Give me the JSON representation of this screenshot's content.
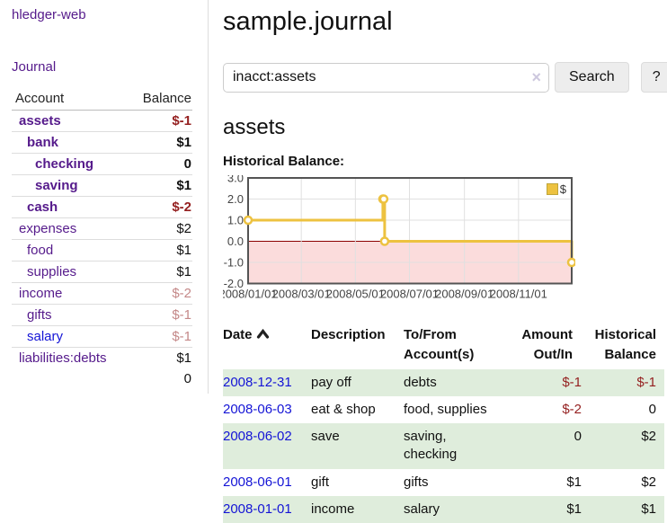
{
  "app": {
    "brand": "hledger-web",
    "nav_journal": "Journal"
  },
  "sidebar": {
    "columns": {
      "account": "Account",
      "balance": "Balance"
    },
    "accounts": [
      {
        "name": "assets",
        "indent": 1,
        "bold": true,
        "balance": "$-1",
        "balance_style": "negative"
      },
      {
        "name": "bank",
        "indent": 2,
        "bold": true,
        "balance": "$1",
        "balance_style": "normal"
      },
      {
        "name": "checking",
        "indent": 3,
        "bold": true,
        "balance": "0",
        "balance_style": "normal"
      },
      {
        "name": "saving",
        "indent": 3,
        "bold": true,
        "balance": "$1",
        "balance_style": "normal"
      },
      {
        "name": "cash",
        "indent": 2,
        "bold": true,
        "balance": "$-2",
        "balance_style": "negative"
      },
      {
        "name": "expenses",
        "indent": 1,
        "bold": false,
        "balance": "$2",
        "balance_style": "normal"
      },
      {
        "name": "food",
        "indent": 2,
        "bold": false,
        "balance": "$1",
        "balance_style": "normal"
      },
      {
        "name": "supplies",
        "indent": 2,
        "bold": false,
        "balance": "$1",
        "balance_style": "normal"
      },
      {
        "name": "income",
        "indent": 1,
        "bold": false,
        "balance": "$-2",
        "balance_style": "negative-light"
      },
      {
        "name": "gifts",
        "indent": 2,
        "bold": false,
        "balance": "$-1",
        "balance_style": "negative-light"
      },
      {
        "name": "salary",
        "indent": 2,
        "bold": false,
        "balance": "$-1",
        "balance_style": "negative-light",
        "link_style": "blue"
      },
      {
        "name": "liabilities:debts",
        "indent": 1,
        "bold": false,
        "balance": "$1",
        "balance_style": "normal"
      }
    ],
    "total": "0"
  },
  "header": {
    "title": "sample.journal"
  },
  "search": {
    "value": "inacct:assets",
    "clear_icon": "×",
    "button": "Search",
    "help_button": "?"
  },
  "account_page": {
    "title": "assets",
    "chart_label": "Historical Balance:"
  },
  "chart_data": {
    "type": "line",
    "step": true,
    "title": "Historical Balance:",
    "series_label": "$",
    "points": [
      {
        "date": "2008-01-01",
        "value": 1
      },
      {
        "date": "2008-06-01",
        "value": 2
      },
      {
        "date": "2008-06-02",
        "value": 2
      },
      {
        "date": "2008-06-03",
        "value": 0
      },
      {
        "date": "2008-12-31",
        "value": -1
      }
    ],
    "x_range": [
      "2008-01-01",
      "2008-12-31"
    ],
    "ylim": [
      -2,
      3
    ],
    "y_ticks": [
      {
        "label": "3.0",
        "value": 3
      },
      {
        "label": "2.0",
        "value": 2
      },
      {
        "label": "1.0",
        "value": 1
      },
      {
        "label": "0.0",
        "value": 0
      },
      {
        "label": "-1.0",
        "value": -1
      },
      {
        "label": "-2.0",
        "value": -2
      }
    ],
    "x_ticks": [
      {
        "label": "2008/01/01",
        "date": "2008-01-01"
      },
      {
        "label": "2008/03/01",
        "date": "2008-03-01"
      },
      {
        "label": "2008/05/01",
        "date": "2008-05-01"
      },
      {
        "label": "2008/07/01",
        "date": "2008-07-01"
      },
      {
        "label": "2008/09/01",
        "date": "2008-09-01"
      },
      {
        "label": "2008/11/01",
        "date": "2008-11-01"
      }
    ],
    "grid": true,
    "legend_position": "top-right",
    "line_color": "#edc240",
    "negative_region_color": "#fbdcdc",
    "zero_line_color": "#8b0000"
  },
  "register": {
    "columns": [
      "Date",
      "Description",
      "To/From Account(s)",
      "Amount Out/In",
      "Historical Balance"
    ],
    "rows": [
      {
        "date": "2008-12-31",
        "description": "pay off",
        "accounts": "debts",
        "amount": "$-1",
        "amount_negative": true,
        "balance": "$-1",
        "balance_negative": true
      },
      {
        "date": "2008-06-03",
        "description": "eat & shop",
        "accounts": "food, supplies",
        "amount": "$-2",
        "amount_negative": true,
        "balance": "0",
        "balance_negative": false
      },
      {
        "date": "2008-06-02",
        "description": "save",
        "accounts": "saving, checking",
        "amount": "0",
        "amount_negative": false,
        "balance": "$2",
        "balance_negative": false
      },
      {
        "date": "2008-06-01",
        "description": "gift",
        "accounts": "gifts",
        "amount": "$1",
        "amount_negative": false,
        "balance": "$2",
        "balance_negative": false
      },
      {
        "date": "2008-01-01",
        "description": "income",
        "accounts": "salary",
        "amount": "$1",
        "amount_negative": false,
        "balance": "$1",
        "balance_negative": false
      }
    ]
  },
  "colors": {
    "link_visited_purple": "#551a8b",
    "link_blue": "#1414d6",
    "negative_red": "#941f1f",
    "negative_light_red": "#c48888",
    "row_highlight_green": "#dfeddc",
    "chart_series_gold": "#edc240",
    "chart_negative_region_pink": "#fbdcdc",
    "chart_zero_line_red": "#8b0000",
    "chart_grid_grey": "#e0e0e0",
    "chart_border_grey": "#545454"
  }
}
